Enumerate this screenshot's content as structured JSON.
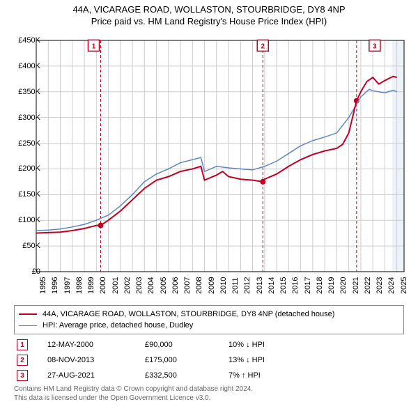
{
  "title": {
    "line1": "44A, VICARAGE ROAD, WOLLASTON, STOURBRIDGE, DY8 4NP",
    "line2": "Price paid vs. HM Land Registry's House Price Index (HPI)"
  },
  "chart": {
    "type": "line",
    "background_color": "#ffffff",
    "plot_bg_band_color": "#eef3fa",
    "grid_color": "#cccccc",
    "axis_color": "#000000",
    "ylim": [
      0,
      450000
    ],
    "ytick_step": 50000,
    "ytick_labels": [
      "£0",
      "£50K",
      "£100K",
      "£150K",
      "£200K",
      "£250K",
      "£300K",
      "£350K",
      "£400K",
      "£450K"
    ],
    "x_years": [
      1995,
      1996,
      1997,
      1998,
      1999,
      2000,
      2001,
      2002,
      2003,
      2004,
      2005,
      2006,
      2007,
      2008,
      2009,
      2010,
      2011,
      2012,
      2013,
      2014,
      2015,
      2016,
      2017,
      2018,
      2019,
      2020,
      2021,
      2022,
      2023,
      2024,
      2025
    ],
    "series": [
      {
        "name": "property",
        "label": "44A, VICARAGE ROAD, WOLLASTON, STOURBRIDGE, DY8 4NP (detached house)",
        "color": "#c00020",
        "line_width": 2,
        "data": [
          [
            1995,
            75000
          ],
          [
            1996,
            76000
          ],
          [
            1997,
            77000
          ],
          [
            1998,
            80000
          ],
          [
            1999,
            84000
          ],
          [
            2000,
            90000
          ],
          [
            2000.36,
            90000
          ],
          [
            2001,
            100000
          ],
          [
            2002,
            118000
          ],
          [
            2003,
            140000
          ],
          [
            2004,
            162000
          ],
          [
            2005,
            178000
          ],
          [
            2006,
            185000
          ],
          [
            2007,
            195000
          ],
          [
            2008,
            200000
          ],
          [
            2008.7,
            205000
          ],
          [
            2009,
            178000
          ],
          [
            2010,
            188000
          ],
          [
            2010.5,
            195000
          ],
          [
            2011,
            185000
          ],
          [
            2012,
            180000
          ],
          [
            2013,
            178000
          ],
          [
            2013.85,
            175000
          ],
          [
            2014,
            180000
          ],
          [
            2015,
            190000
          ],
          [
            2016,
            205000
          ],
          [
            2017,
            218000
          ],
          [
            2018,
            228000
          ],
          [
            2019,
            235000
          ],
          [
            2020,
            240000
          ],
          [
            2020.5,
            248000
          ],
          [
            2021,
            270000
          ],
          [
            2021.65,
            332500
          ],
          [
            2022,
            350000
          ],
          [
            2022.5,
            370000
          ],
          [
            2023,
            378000
          ],
          [
            2023.5,
            365000
          ],
          [
            2024,
            372000
          ],
          [
            2024.7,
            380000
          ],
          [
            2025,
            378000
          ]
        ]
      },
      {
        "name": "hpi",
        "label": "HPI: Average price, detached house, Dudley",
        "color": "#5a87c6",
        "line_width": 1.5,
        "data": [
          [
            1995,
            80000
          ],
          [
            1996,
            81000
          ],
          [
            1997,
            83000
          ],
          [
            1998,
            87000
          ],
          [
            1999,
            92000
          ],
          [
            2000,
            100000
          ],
          [
            2001,
            110000
          ],
          [
            2002,
            128000
          ],
          [
            2003,
            150000
          ],
          [
            2004,
            175000
          ],
          [
            2005,
            190000
          ],
          [
            2006,
            200000
          ],
          [
            2007,
            212000
          ],
          [
            2008,
            218000
          ],
          [
            2008.7,
            222000
          ],
          [
            2009,
            195000
          ],
          [
            2010,
            205000
          ],
          [
            2011,
            202000
          ],
          [
            2012,
            200000
          ],
          [
            2013,
            198000
          ],
          [
            2014,
            205000
          ],
          [
            2015,
            215000
          ],
          [
            2016,
            230000
          ],
          [
            2017,
            245000
          ],
          [
            2018,
            255000
          ],
          [
            2019,
            262000
          ],
          [
            2020,
            270000
          ],
          [
            2021,
            300000
          ],
          [
            2022,
            340000
          ],
          [
            2022.7,
            355000
          ],
          [
            2023,
            352000
          ],
          [
            2024,
            348000
          ],
          [
            2024.7,
            353000
          ],
          [
            2025,
            350000
          ]
        ]
      }
    ],
    "sale_markers": [
      {
        "num": "1",
        "x": 2000.36,
        "y": 90000,
        "badge_y": 440000
      },
      {
        "num": "2",
        "x": 2013.85,
        "y": 175000,
        "badge_y": 440000
      },
      {
        "num": "3",
        "x": 2021.65,
        "y": 332500,
        "badge_y": 440000
      }
    ],
    "marker_line_color": "#c00020",
    "marker_line_dash": "4 3",
    "marker_badge_border": "#c00020",
    "marker_badge_text": "#c00020",
    "marker_dot_color": "#c00020",
    "marker_dot_radius": 4,
    "badge_offset_x": [
      -10,
      0,
      26
    ],
    "x_band": [
      2024.6,
      2025.6
    ]
  },
  "legend": [
    {
      "color": "#c00020",
      "width": 2,
      "label": "44A, VICARAGE ROAD, WOLLASTON, STOURBRIDGE, DY8 4NP (detached house)"
    },
    {
      "color": "#5a87c6",
      "width": 1.5,
      "label": "HPI: Average price, detached house, Dudley"
    }
  ],
  "sales": [
    {
      "num": "1",
      "date": "12-MAY-2000",
      "price": "£90,000",
      "delta": "10% ↓ HPI"
    },
    {
      "num": "2",
      "date": "08-NOV-2013",
      "price": "£175,000",
      "delta": "13% ↓ HPI"
    },
    {
      "num": "3",
      "date": "27-AUG-2021",
      "price": "£332,500",
      "delta": "7% ↑ HPI"
    }
  ],
  "footer": {
    "line1": "Contains HM Land Registry data © Crown copyright and database right 2024.",
    "line2": "This data is licensed under the Open Government Licence v3.0."
  }
}
